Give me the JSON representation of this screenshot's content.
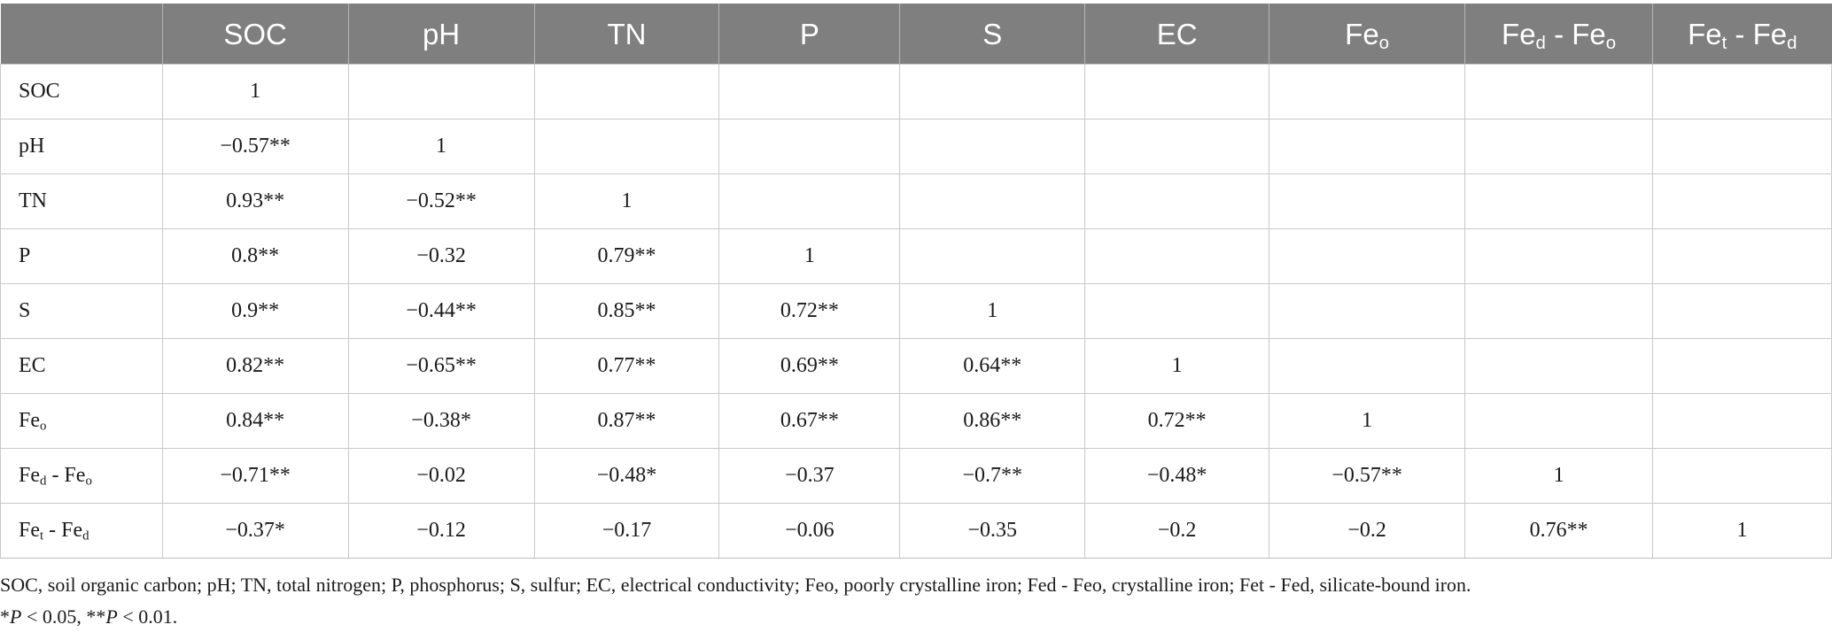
{
  "table": {
    "header": [
      {
        "base": "",
        "sub": "",
        "suffix": "",
        "suffix_sub": ""
      },
      {
        "base": "SOC",
        "sub": "",
        "suffix": "",
        "suffix_sub": ""
      },
      {
        "base": "pH",
        "sub": "",
        "suffix": "",
        "suffix_sub": ""
      },
      {
        "base": "TN",
        "sub": "",
        "suffix": "",
        "suffix_sub": ""
      },
      {
        "base": "P",
        "sub": "",
        "suffix": "",
        "suffix_sub": ""
      },
      {
        "base": "S",
        "sub": "",
        "suffix": "",
        "suffix_sub": ""
      },
      {
        "base": "EC",
        "sub": "",
        "suffix": "",
        "suffix_sub": ""
      },
      {
        "base": "Fe",
        "sub": "o",
        "suffix": "",
        "suffix_sub": ""
      },
      {
        "base": "Fe",
        "sub": "d",
        "suffix": " - Fe",
        "suffix_sub": "o"
      },
      {
        "base": "Fe",
        "sub": "t",
        "suffix": " - Fe",
        "suffix_sub": "d"
      }
    ],
    "rows": [
      {
        "label": {
          "base": "SOC",
          "sub": "",
          "suffix": "",
          "suffix_sub": ""
        },
        "cells": [
          "1",
          "",
          "",
          "",
          "",
          "",
          "",
          "",
          ""
        ]
      },
      {
        "label": {
          "base": "pH",
          "sub": "",
          "suffix": "",
          "suffix_sub": ""
        },
        "cells": [
          "−0.57**",
          "1",
          "",
          "",
          "",
          "",
          "",
          "",
          ""
        ]
      },
      {
        "label": {
          "base": "TN",
          "sub": "",
          "suffix": "",
          "suffix_sub": ""
        },
        "cells": [
          "0.93**",
          "−0.52**",
          "1",
          "",
          "",
          "",
          "",
          "",
          ""
        ]
      },
      {
        "label": {
          "base": "P",
          "sub": "",
          "suffix": "",
          "suffix_sub": ""
        },
        "cells": [
          "0.8**",
          "−0.32",
          "0.79**",
          "1",
          "",
          "",
          "",
          "",
          ""
        ]
      },
      {
        "label": {
          "base": "S",
          "sub": "",
          "suffix": "",
          "suffix_sub": ""
        },
        "cells": [
          "0.9**",
          "−0.44**",
          "0.85**",
          "0.72**",
          "1",
          "",
          "",
          "",
          ""
        ]
      },
      {
        "label": {
          "base": "EC",
          "sub": "",
          "suffix": "",
          "suffix_sub": ""
        },
        "cells": [
          "0.82**",
          "−0.65**",
          "0.77**",
          "0.69**",
          "0.64**",
          "1",
          "",
          "",
          ""
        ]
      },
      {
        "label": {
          "base": "Fe",
          "sub": "o",
          "suffix": "",
          "suffix_sub": ""
        },
        "cells": [
          "0.84**",
          "−0.38*",
          "0.87**",
          "0.67**",
          "0.86**",
          "0.72**",
          "1",
          "",
          ""
        ]
      },
      {
        "label": {
          "base": "Fe",
          "sub": "d",
          "suffix": " - Fe",
          "suffix_sub": "o"
        },
        "cells": [
          "−0.71**",
          "−0.02",
          "−0.48*",
          "−0.37",
          "−0.7**",
          "−0.48*",
          "−0.57**",
          "1",
          ""
        ]
      },
      {
        "label": {
          "base": "Fe",
          "sub": "t",
          "suffix": " - Fe",
          "suffix_sub": "d"
        },
        "cells": [
          "−0.37*",
          "−0.12",
          "−0.17",
          "−0.06",
          "−0.35",
          "−0.2",
          "−0.2",
          "0.76**",
          "1"
        ]
      }
    ]
  },
  "footnote": {
    "line1": "SOC, soil organic carbon; pH; TN, total nitrogen; P, phosphorus; S, sulfur; EC, electrical conductivity; Feo, poorly crystalline iron; Fed - Feo, crystalline iron; Fet - Fed, silicate-bound iron.",
    "line2_parts": [
      {
        "text": "*",
        "italic": false
      },
      {
        "text": "P",
        "italic": true
      },
      {
        "text": " < 0.05, **",
        "italic": false
      },
      {
        "text": "P",
        "italic": true
      },
      {
        "text": " < 0.01.",
        "italic": false
      }
    ]
  },
  "colors": {
    "header_bg": "#7f7f7f",
    "header_text": "#ffffff",
    "grid": "#c9c9c9"
  }
}
